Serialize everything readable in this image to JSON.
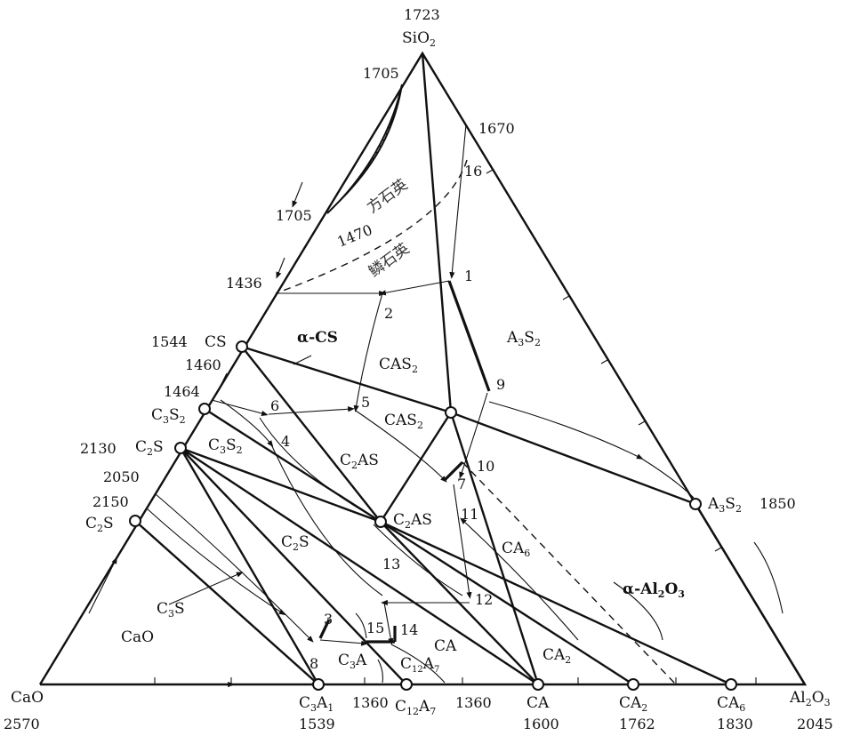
{
  "vertices": {
    "sio2": {
      "name": "SiO",
      "sub": "2",
      "temp": "1723"
    },
    "cao": {
      "name": "CaO",
      "temp": "2570"
    },
    "al2o3": {
      "name": "Al",
      "sub1": "2",
      "mid": "O",
      "sub2": "3",
      "temp": "2045"
    }
  },
  "compounds": {
    "cs": {
      "name": "CS",
      "temp_a": "1544",
      "temp_b": "1460"
    },
    "c3s2": {
      "name": "C",
      "s1": "3",
      "mid": "S",
      "s2": "2",
      "temp": "1464"
    },
    "c2s_upper": {
      "name": "C",
      "s1": "2",
      "mid": "S",
      "temp": "2130"
    },
    "c2s_lower": {
      "name": "C",
      "s1": "2",
      "mid": "S",
      "temp_a": "2050",
      "temp_b": "2150"
    },
    "c3a": {
      "name": "C",
      "s1": "3",
      "mid": "A",
      "s2": "1",
      "temp": "1539"
    },
    "c12a7": {
      "name": "C",
      "s1": "12",
      "mid": "A",
      "s2": "7",
      "temp": "1360"
    },
    "ca": {
      "name": "CA",
      "temp": "1600",
      "eut": "1360"
    },
    "ca2": {
      "name": "CA",
      "s1": "2",
      "temp": "1762"
    },
    "ca6": {
      "name": "CA",
      "s1": "6",
      "temp": "1830"
    },
    "a3s2": {
      "name": "A",
      "s1": "3",
      "mid": "S",
      "s2": "2",
      "temp": "1850"
    },
    "cas2": {
      "name": "CAS",
      "s1": "2"
    },
    "c2as": {
      "name": "C",
      "s1": "2",
      "mid": "AS"
    }
  },
  "edge_temps": {
    "t1705_top": "1705",
    "t1705_left": "1705",
    "t1670": "1670",
    "t1470": "1470",
    "t1436": "1436"
  },
  "fields": {
    "cristobalite": "方石英",
    "tridymite": "鳞石英",
    "alpha_cs": "α-CS",
    "cas2_field": {
      "name": "CAS",
      "s1": "2"
    },
    "a3s2_field": {
      "name": "A",
      "s1": "3",
      "mid": "S",
      "s2": "2"
    },
    "c3s2_field": {
      "name": "C",
      "s1": "3",
      "mid": "S",
      "s2": "2"
    },
    "c2as_field": {
      "name": "C",
      "s1": "2",
      "mid": "AS"
    },
    "c2s_field": {
      "name": "C",
      "s1": "2",
      "mid": "S"
    },
    "c3s_field": {
      "name": "C",
      "s1": "3",
      "mid": "S"
    },
    "cao_field": "CaO",
    "c3a_field": {
      "name": "C",
      "s1": "3",
      "mid": "A"
    },
    "c12a7_field": {
      "name": "C",
      "s1": "12",
      "mid": "A",
      "s2": "7"
    },
    "ca_field": "CA",
    "ca2_field": {
      "name": "CA",
      "s1": "2"
    },
    "ca6_field": {
      "name": "CA",
      "s1": "6"
    },
    "alpha_al2o3": {
      "name": "α-Al",
      "s1": "2",
      "mid": "O",
      "s2": "3"
    }
  },
  "invariant_points": [
    "1",
    "2",
    "3",
    "4",
    "5",
    "6",
    "7",
    "8",
    "9",
    "10",
    "11",
    "12",
    "13",
    "14",
    "15",
    "16"
  ]
}
